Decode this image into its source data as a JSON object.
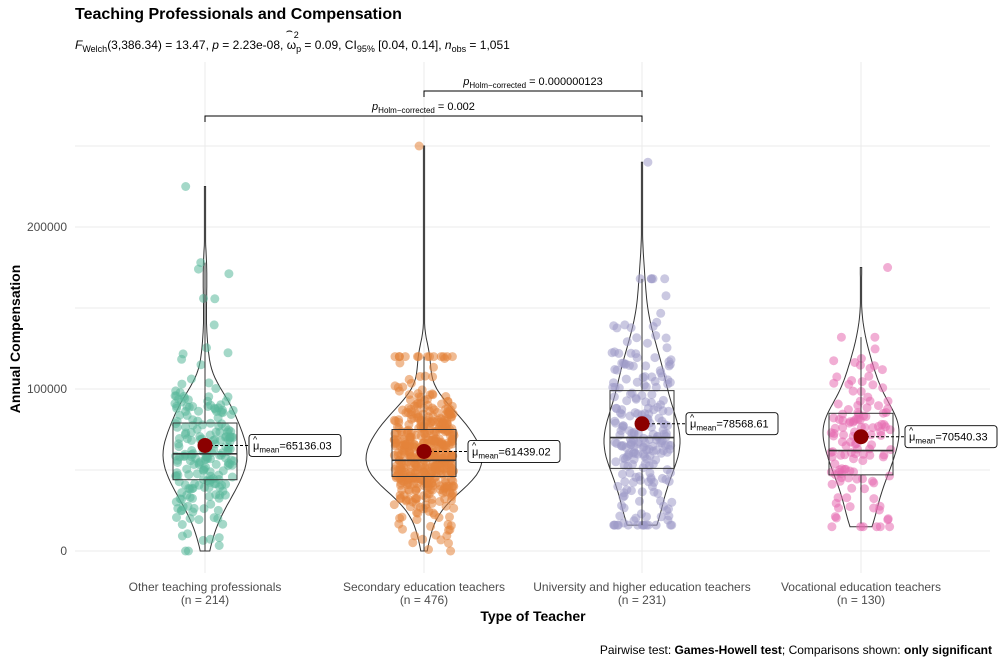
{
  "chart_data": {
    "type": "violin-box-scatter",
    "title": "Teaching Professionals and Compensation",
    "subtitle": {
      "welch_label": "Welch",
      "df": "(3,386.34)",
      "F": "13.47",
      "p": "2.23e-08",
      "omega_sq": "0.09",
      "ci_sub": "95%",
      "ci": "[0.04, 0.14]",
      "n_obs": "1,051"
    },
    "xlabel": "Type of Teacher",
    "ylabel": "Annual Compensation",
    "ylim": [
      -10000,
      270000
    ],
    "yticks": [
      0,
      100000,
      200000
    ],
    "ytick_labels": [
      "0",
      "100000",
      "200000"
    ],
    "categories": [
      {
        "name": "Other teaching professionals",
        "n_label": "(n = 214)",
        "color": "#5AB89B",
        "mean": 65136.03,
        "mean_label": "65136.03",
        "median": 60000,
        "q1": 44000,
        "q3": 79000,
        "whisker_low": 0,
        "whisker_high": 178000,
        "min": 0,
        "max": 225000
      },
      {
        "name": "Secondary education teachers",
        "n_label": "(n = 476)",
        "color": "#E4843A",
        "mean": 61439.02,
        "mean_label": "61439.02",
        "median": 56000,
        "q1": 46000,
        "q3": 75000,
        "whisker_low": 0,
        "whisker_high": 120000,
        "min": 0,
        "max": 250000
      },
      {
        "name": "University and higher education teachers",
        "n_label": "(n = 231)",
        "color": "#9E9AC8",
        "mean": 78568.61,
        "mean_label": "78568.61",
        "median": 70000,
        "q1": 51000,
        "q3": 99000,
        "whisker_low": 16000,
        "whisker_high": 168000,
        "min": 16000,
        "max": 240000
      },
      {
        "name": "Vocational education teachers",
        "n_label": "(n = 130)",
        "color": "#E66BB0",
        "mean": 70540.33,
        "mean_label": "70540.33",
        "median": 62000,
        "q1": 47000,
        "q3": 85000,
        "whisker_low": 17000,
        "whisker_high": 132000,
        "min": 15000,
        "max": 175000
      }
    ],
    "mean_marker_color": "#8B0000",
    "mean_label_prefix": "mean",
    "comparisons": [
      {
        "from": 1,
        "to": 2,
        "label_sub": "Holm−corrected",
        "label_value": "= 0.000000123"
      },
      {
        "from": 0,
        "to": 2,
        "label_sub": "Holm−corrected",
        "label_value": "= 0.002"
      }
    ],
    "caption": {
      "prefix": "Pairwise test: ",
      "test": "Games-Howell test",
      "middle": "; Comparisons shown: ",
      "shown": "only significant"
    },
    "grid": true
  }
}
